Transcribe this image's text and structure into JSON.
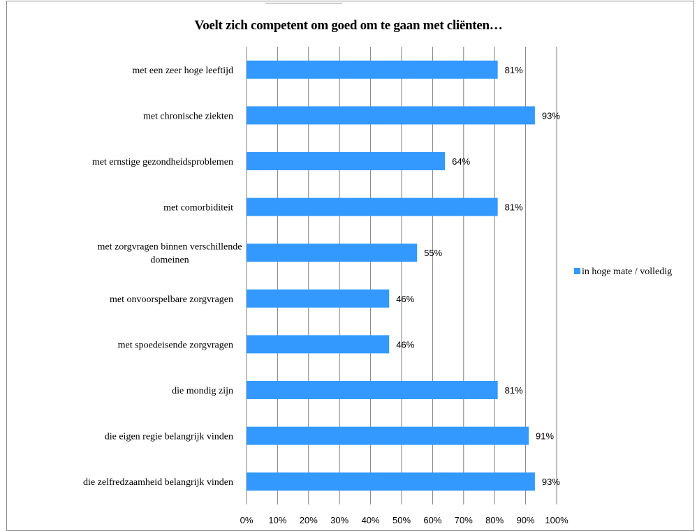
{
  "chart_data": {
    "type": "bar",
    "orientation": "horizontal",
    "title": "Voelt zich competent om goed om te gaan met cliënten…",
    "categories": [
      "met een zeer hoge leeftijd",
      "met chronische ziekten",
      "met ernstige gezondheidsproblemen",
      "met comorbiditeit",
      "met zorgvragen binnen verschillende domeinen",
      "met onvoorspelbare zorgvragen",
      "met spoedeisende zorgvragen",
      "die mondig zijn",
      "die eigen regie belangrijk vinden",
      "die zelfredzaamheid belangrijk vinden"
    ],
    "series": [
      {
        "name": "in hoge mate / volledig",
        "values": [
          81,
          93,
          64,
          81,
          55,
          46,
          46,
          81,
          91,
          93
        ],
        "labels": [
          "81%",
          "93%",
          "64%",
          "81%",
          "55%",
          "46%",
          "46%",
          "81%",
          "91%",
          "93%"
        ]
      }
    ],
    "x_ticks": [
      "0%",
      "10%",
      "20%",
      "30%",
      "40%",
      "50%",
      "60%",
      "70%",
      "80%",
      "90%",
      "100%"
    ],
    "xlim": [
      0,
      100
    ],
    "grid": "vertical",
    "legend_position": "right",
    "bar_color": "#3399ff"
  }
}
